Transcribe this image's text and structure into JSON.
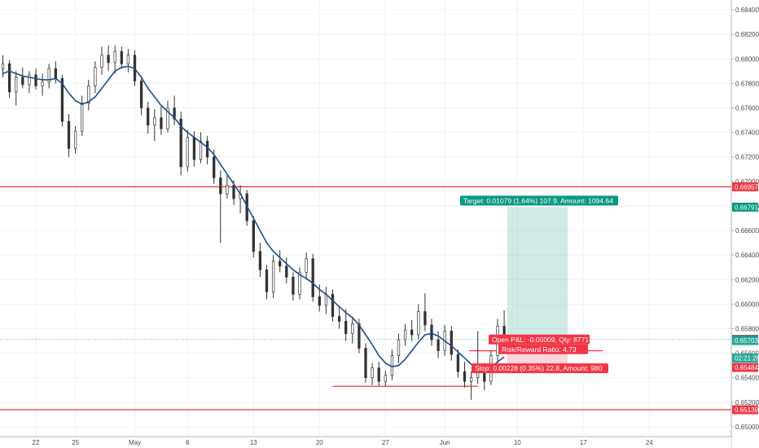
{
  "chart_data": {
    "type": "candlestick",
    "title": "",
    "ylim": [
      0.6492,
      0.6848
    ],
    "grid": true,
    "y_ticks": [
      "0.68400",
      "0.68200",
      "0.68000",
      "0.67800",
      "0.67600",
      "0.67400",
      "0.67200",
      "0.67000",
      "0.66800",
      "0.66600",
      "0.66400",
      "0.66200",
      "0.66000",
      "0.65800",
      "0.65600",
      "0.65400",
      "0.65200",
      "0.65000"
    ],
    "y_tick_values": [
      0.684,
      0.682,
      0.68,
      0.678,
      0.676,
      0.674,
      0.672,
      0.67,
      0.668,
      0.666,
      0.664,
      0.662,
      0.66,
      0.658,
      0.656,
      0.654,
      0.652,
      0.65
    ],
    "x_ticks": [
      "22",
      "25",
      "May",
      "6",
      "13",
      "20",
      "27",
      "Jun",
      "10",
      "17",
      "24"
    ],
    "x_tick_index": [
      5,
      11,
      20,
      28,
      38,
      48,
      58,
      67,
      78,
      88,
      98
    ],
    "price_lines": [
      {
        "value": 0.66957,
        "label": "0.66957",
        "color": "#f23645"
      },
      {
        "value": 0.65139,
        "label": "0.65139",
        "color": "#f23645"
      }
    ],
    "support_segment": {
      "value": 0.6533,
      "from_index": 50,
      "to_index": 72
    },
    "axis_badges": [
      {
        "value": 0.66957,
        "label": "0.66957",
        "color": "#f23645"
      },
      {
        "value": 0.66791,
        "label": "0.66791",
        "color": "#089981"
      },
      {
        "value": 0.65712,
        "label": "0.65712",
        "color": "#555555"
      },
      {
        "value": 0.65703,
        "label": "0.65703",
        "color": "#26a69a"
      },
      {
        "value": 0.6556,
        "label": "02:21:28",
        "color": "#26a69a"
      },
      {
        "value": 0.65484,
        "label": "0.65484",
        "color": "#f23645"
      },
      {
        "value": 0.65139,
        "label": "0.65139",
        "color": "#f23645"
      }
    ],
    "position": {
      "entry": 0.65712,
      "target": 0.66791,
      "stop": 0.65484,
      "target_label": "Target: 0.01079 (1.64%) 107.9, Amount: 1094.64",
      "pnl_label": "Open P&L: -0.00009, Qty: 8771",
      "rr_label": "Risk/Reward Ratio: 4.73",
      "stop_label": "Stop: 0.00228 (0.35%) 22.8, Amount: 980"
    },
    "ohlc": [
      [
        0.6792,
        0.6803,
        0.6785,
        0.6796
      ],
      [
        0.6796,
        0.6799,
        0.6768,
        0.6773
      ],
      [
        0.6773,
        0.679,
        0.6762,
        0.6785
      ],
      [
        0.6785,
        0.6793,
        0.6776,
        0.6779
      ],
      [
        0.6779,
        0.679,
        0.6772,
        0.6787
      ],
      [
        0.6787,
        0.6792,
        0.6775,
        0.6778
      ],
      [
        0.6778,
        0.6788,
        0.677,
        0.6781
      ],
      [
        0.6781,
        0.6796,
        0.6776,
        0.6792
      ],
      [
        0.6792,
        0.6798,
        0.678,
        0.6784
      ],
      [
        0.6784,
        0.6787,
        0.6745,
        0.6749
      ],
      [
        0.6749,
        0.6755,
        0.672,
        0.6727
      ],
      [
        0.6727,
        0.6745,
        0.6723,
        0.6741
      ],
      [
        0.6741,
        0.677,
        0.6737,
        0.6764
      ],
      [
        0.6764,
        0.6783,
        0.6758,
        0.6778
      ],
      [
        0.6778,
        0.6798,
        0.6772,
        0.6793
      ],
      [
        0.6793,
        0.681,
        0.6787,
        0.6803
      ],
      [
        0.6803,
        0.6811,
        0.679,
        0.6797
      ],
      [
        0.6797,
        0.6811,
        0.6788,
        0.6806
      ],
      [
        0.6806,
        0.681,
        0.6792,
        0.6796
      ],
      [
        0.6796,
        0.6808,
        0.6789,
        0.6803
      ],
      [
        0.6803,
        0.6807,
        0.6778,
        0.6782
      ],
      [
        0.6782,
        0.6786,
        0.6754,
        0.676
      ],
      [
        0.676,
        0.6765,
        0.6739,
        0.6746
      ],
      [
        0.6746,
        0.6759,
        0.6733,
        0.6752
      ],
      [
        0.6752,
        0.6761,
        0.6738,
        0.6743
      ],
      [
        0.6743,
        0.6766,
        0.674,
        0.676
      ],
      [
        0.676,
        0.677,
        0.6746,
        0.6751
      ],
      [
        0.6751,
        0.6757,
        0.6705,
        0.6712
      ],
      [
        0.6712,
        0.6742,
        0.6708,
        0.6736
      ],
      [
        0.6736,
        0.6741,
        0.6712,
        0.6718
      ],
      [
        0.6718,
        0.674,
        0.6715,
        0.6733
      ],
      [
        0.6733,
        0.6737,
        0.6714,
        0.672
      ],
      [
        0.672,
        0.6726,
        0.6698,
        0.6703
      ],
      [
        0.6703,
        0.6709,
        0.665,
        0.669
      ],
      [
        0.669,
        0.6705,
        0.6686,
        0.6697
      ],
      [
        0.6697,
        0.6701,
        0.6681,
        0.6686
      ],
      [
        0.6686,
        0.6697,
        0.6674,
        0.669
      ],
      [
        0.669,
        0.6693,
        0.6664,
        0.6668
      ],
      [
        0.6668,
        0.6672,
        0.6638,
        0.6643
      ],
      [
        0.6643,
        0.665,
        0.6622,
        0.6628
      ],
      [
        0.6628,
        0.6632,
        0.6604,
        0.661
      ],
      [
        0.661,
        0.664,
        0.6605,
        0.6635
      ],
      [
        0.6635,
        0.6644,
        0.6626,
        0.6631
      ],
      [
        0.6631,
        0.6638,
        0.6617,
        0.6622
      ],
      [
        0.6622,
        0.6626,
        0.6603,
        0.6608
      ],
      [
        0.6608,
        0.663,
        0.6604,
        0.6626
      ],
      [
        0.6626,
        0.6642,
        0.662,
        0.6637
      ],
      [
        0.6637,
        0.6641,
        0.6602,
        0.6606
      ],
      [
        0.6606,
        0.6616,
        0.6594,
        0.6599
      ],
      [
        0.6599,
        0.6614,
        0.6592,
        0.6608
      ],
      [
        0.6608,
        0.6612,
        0.6586,
        0.659
      ],
      [
        0.659,
        0.6598,
        0.658,
        0.6586
      ],
      [
        0.6586,
        0.6596,
        0.657,
        0.6576
      ],
      [
        0.6576,
        0.659,
        0.6568,
        0.6584
      ],
      [
        0.6584,
        0.6588,
        0.656,
        0.6564
      ],
      [
        0.6564,
        0.6568,
        0.6536,
        0.654
      ],
      [
        0.654,
        0.6552,
        0.6534,
        0.6548
      ],
      [
        0.6548,
        0.6553,
        0.6533,
        0.6537
      ],
      [
        0.6537,
        0.6546,
        0.6533,
        0.6542
      ],
      [
        0.6542,
        0.6563,
        0.6538,
        0.6558
      ],
      [
        0.6558,
        0.6576,
        0.6552,
        0.6571
      ],
      [
        0.6571,
        0.6584,
        0.6566,
        0.6579
      ],
      [
        0.6579,
        0.6587,
        0.657,
        0.6575
      ],
      [
        0.6575,
        0.66,
        0.6571,
        0.6594
      ],
      [
        0.6594,
        0.6609,
        0.6578,
        0.6583
      ],
      [
        0.6583,
        0.6588,
        0.6566,
        0.6571
      ],
      [
        0.6571,
        0.6578,
        0.6556,
        0.6562
      ],
      [
        0.6562,
        0.6583,
        0.6558,
        0.6578
      ],
      [
        0.6578,
        0.6582,
        0.6554,
        0.6559
      ],
      [
        0.6559,
        0.6563,
        0.654,
        0.6545
      ],
      [
        0.6545,
        0.6553,
        0.6532,
        0.6537
      ],
      [
        0.6537,
        0.6545,
        0.6522,
        0.654
      ],
      [
        0.654,
        0.6578,
        0.6535,
        0.6548
      ],
      [
        0.6548,
        0.6552,
        0.653,
        0.6537
      ],
      [
        0.6537,
        0.6562,
        0.6534,
        0.6558
      ],
      [
        0.6558,
        0.6588,
        0.6552,
        0.6582
      ],
      [
        0.6582,
        0.6595,
        0.6566,
        0.6571
      ]
    ],
    "moving_average": [
      0.6788,
      0.679,
      0.6788,
      0.6786,
      0.6785,
      0.6784,
      0.6783,
      0.6783,
      0.6784,
      0.678,
      0.6772,
      0.6766,
      0.6763,
      0.6765,
      0.6769,
      0.6776,
      0.6783,
      0.679,
      0.6793,
      0.6794,
      0.6792,
      0.6785,
      0.6776,
      0.6769,
      0.6762,
      0.6757,
      0.6752,
      0.6745,
      0.674,
      0.6736,
      0.6732,
      0.6728,
      0.6722,
      0.6714,
      0.6706,
      0.6698,
      0.669,
      0.668,
      0.667,
      0.666,
      0.665,
      0.6643,
      0.6638,
      0.6633,
      0.6628,
      0.6624,
      0.6621,
      0.6617,
      0.6612,
      0.6608,
      0.6603,
      0.6598,
      0.6593,
      0.6589,
      0.6583,
      0.6575,
      0.6567,
      0.6558,
      0.6552,
      0.6549,
      0.655,
      0.6555,
      0.6562,
      0.6569,
      0.6575,
      0.6576,
      0.6574,
      0.657,
      0.6566,
      0.6561,
      0.6556,
      0.6551,
      0.6547,
      0.6546,
      0.6548,
      0.6553,
      0.6557
    ]
  }
}
